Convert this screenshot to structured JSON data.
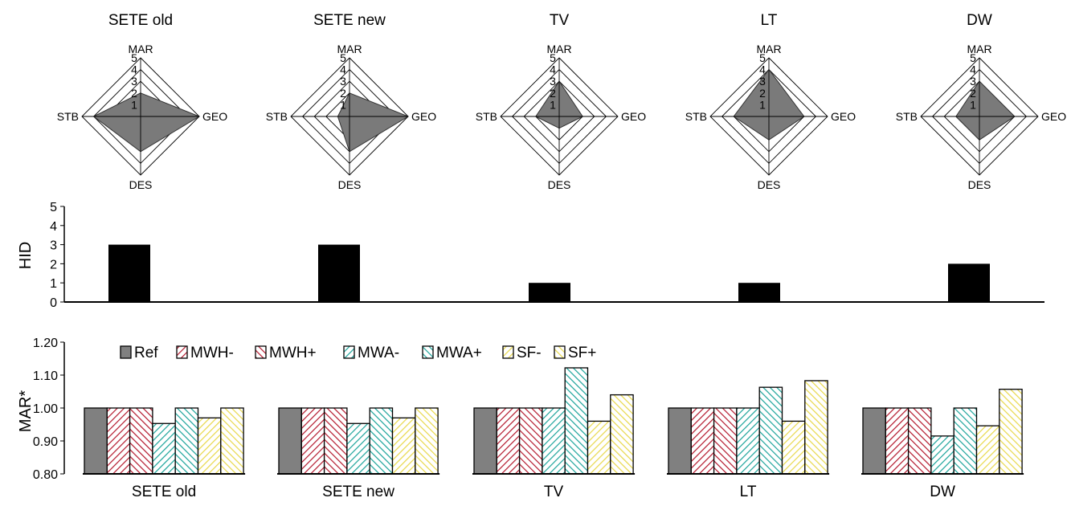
{
  "colors": {
    "radar_fill": "#7a7a7a",
    "hid_bar": "#000000",
    "Ref": "#808080",
    "MWH": "#b3162b",
    "MWA": "#1aa39a",
    "SF": "#e8d84a"
  },
  "chart_data": [
    {
      "type": "radar",
      "axes": [
        "MAR",
        "GEO",
        "DES",
        "STB"
      ],
      "scale": [
        0,
        5
      ],
      "ticks": [
        "1",
        "2",
        "3",
        "4",
        "5"
      ],
      "panels": [
        {
          "title": "SETE old",
          "values": {
            "MAR": 2,
            "GEO": 5,
            "DES": 3,
            "STB": 4
          }
        },
        {
          "title": "SETE new",
          "values": {
            "MAR": 2,
            "GEO": 5,
            "DES": 3,
            "STB": 1
          }
        },
        {
          "title": "TV",
          "values": {
            "MAR": 3,
            "GEO": 2,
            "DES": 1,
            "STB": 2
          }
        },
        {
          "title": "LT",
          "values": {
            "MAR": 4,
            "GEO": 3,
            "DES": 2,
            "STB": 3
          }
        },
        {
          "title": "DW",
          "values": {
            "MAR": 3,
            "GEO": 3,
            "DES": 2,
            "STB": 2
          }
        }
      ]
    },
    {
      "type": "bar",
      "ylabel": "HID",
      "ylim": [
        0,
        5
      ],
      "yticks": [
        "0",
        "1",
        "2",
        "3",
        "4",
        "5"
      ],
      "categories": [
        "SETE old",
        "SETE new",
        "TV",
        "LT",
        "DW"
      ],
      "values": [
        3,
        3,
        1,
        1,
        2
      ]
    },
    {
      "type": "bar",
      "ylabel": "MAR*",
      "ylim": [
        0.8,
        1.2
      ],
      "yticks": [
        "0.80",
        "0.90",
        "1.00",
        "1.10",
        "1.20"
      ],
      "categories": [
        "SETE old",
        "SETE new",
        "TV",
        "LT",
        "DW"
      ],
      "series": [
        {
          "name": "Ref",
          "color_key": "Ref",
          "hatch": "solid",
          "values": [
            1.0,
            1.0,
            1.0,
            1.0,
            1.0
          ]
        },
        {
          "name": "MWH-",
          "color_key": "MWH",
          "hatch": "right",
          "values": [
            1.0,
            1.0,
            1.0,
            1.0,
            1.0
          ]
        },
        {
          "name": "MWH+",
          "color_key": "MWH",
          "hatch": "left",
          "values": [
            1.0,
            1.0,
            1.0,
            1.0,
            1.0
          ]
        },
        {
          "name": "MWA-",
          "color_key": "MWA",
          "hatch": "right",
          "values": [
            0.953,
            0.953,
            1.0,
            1.0,
            0.915
          ]
        },
        {
          "name": "MWA+",
          "color_key": "MWA",
          "hatch": "left",
          "values": [
            1.0,
            1.0,
            1.122,
            1.063,
            1.0
          ]
        },
        {
          "name": "SF-",
          "color_key": "SF",
          "hatch": "right",
          "values": [
            0.97,
            0.97,
            0.96,
            0.96,
            0.946
          ]
        },
        {
          "name": "SF+",
          "color_key": "SF",
          "hatch": "left",
          "values": [
            1.0,
            1.0,
            1.04,
            1.083,
            1.057
          ]
        }
      ],
      "legend": "top-left"
    }
  ]
}
